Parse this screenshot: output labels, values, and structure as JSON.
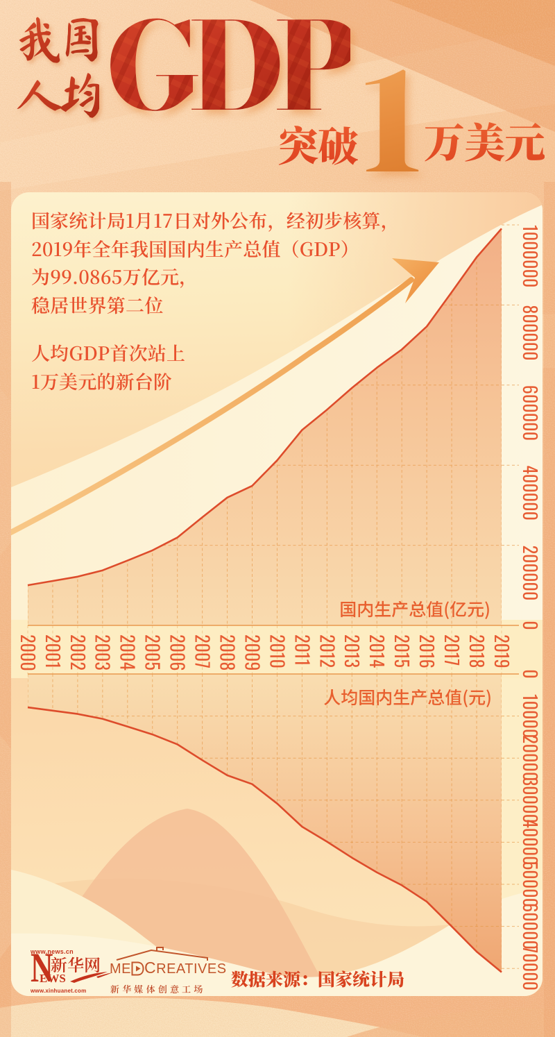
{
  "poster_title": "我国人均GDP突破1万美元",
  "header": {
    "brush_line1": "我国",
    "brush_line2": "人均",
    "gdp": "GDP",
    "tupo": "突破",
    "big_one": "1",
    "wanmeiyuan": "万美元"
  },
  "intro": {
    "paragraph1": [
      "国家统计局1月17日对外公布，经初步核算，",
      "2019年全年我国国内生产总值（GDP）",
      "为99.0865万亿元，",
      "稳居世界第二位"
    ],
    "paragraph2": [
      "人均GDP首次站上",
      "1万美元的新台阶"
    ]
  },
  "chart_data": [
    {
      "type": "area",
      "title": "国内生产总值(亿元)",
      "categories": [
        "2000",
        "2001",
        "2002",
        "2003",
        "2004",
        "2005",
        "2006",
        "2007",
        "2008",
        "2009",
        "2010",
        "2011",
        "2012",
        "2013",
        "2014",
        "2015",
        "2016",
        "2017",
        "2018",
        "2019"
      ],
      "values": [
        100280,
        110863,
        121717,
        137422,
        161840,
        187319,
        219439,
        270092,
        319245,
        348518,
        412119,
        487940,
        538580,
        592963,
        643563,
        688858,
        746395,
        832036,
        919281,
        990865
      ],
      "ylim": [
        0,
        1000000
      ],
      "yticks": [
        0,
        200000,
        400000,
        600000,
        800000,
        1000000
      ],
      "axis_side": "right",
      "grid": true,
      "line_color": "#dd4c2b"
    },
    {
      "type": "area",
      "title": "人均国内生产总值(元)",
      "inverted": true,
      "categories": [
        "2000",
        "2001",
        "2002",
        "2003",
        "2004",
        "2005",
        "2006",
        "2007",
        "2008",
        "2009",
        "2010",
        "2011",
        "2012",
        "2013",
        "2014",
        "2015",
        "2016",
        "2017",
        "2018",
        "2019"
      ],
      "values": [
        7942,
        8717,
        9506,
        10666,
        12487,
        14368,
        16738,
        20494,
        24100,
        26180,
        30808,
        36302,
        39874,
        43684,
        47173,
        50237,
        54139,
        60014,
        66006,
        70892
      ],
      "ylim": [
        0,
        70000
      ],
      "yticks": [
        0,
        10000,
        20000,
        30000,
        40000,
        50000,
        60000,
        70000
      ],
      "axis_side": "right",
      "grid": true,
      "line_color": "#dd4c2b"
    }
  ],
  "footer": {
    "source": "数据来源：国家统计局",
    "news_logo": {
      "url_top": "www.news.cn",
      "n": "N",
      "ews": "EWS",
      "name": "新华网",
      "url_bottom": "www.xinhuanet.com"
    },
    "med_logo": {
      "me": "ME",
      "creatives": "CREATIVES",
      "tagline": "新华媒体创意工场"
    }
  },
  "colors": {
    "accent_red": "#c23420",
    "text_orange": "#e8512e",
    "line": "#dd4c2b",
    "grid": "#e5923f",
    "panel_cream": "#fdf0cb",
    "bg_peach": "#f8c99e"
  }
}
